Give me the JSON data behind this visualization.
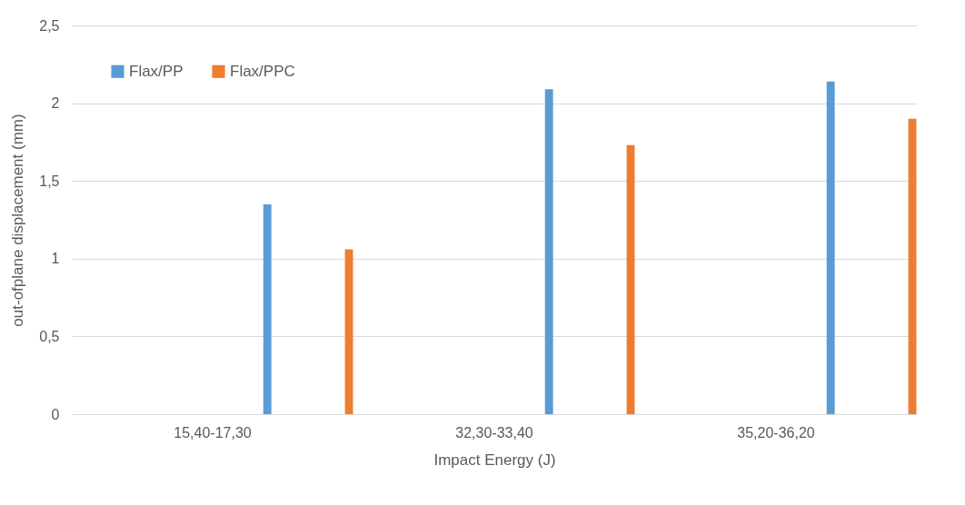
{
  "chart_data": {
    "type": "bar",
    "xlabel": "Impact Energy (J)",
    "ylabel": "out-ofplane displacement (mm)",
    "categories": [
      "15,40-17,30",
      "32,30-33,40",
      "35,20-36,20"
    ],
    "series": [
      {
        "name": "Flax/PP",
        "color": "#5b9bd5",
        "values": [
          1.35,
          2.09,
          2.14
        ]
      },
      {
        "name": "Flax/PPC",
        "color": "#ed7d31",
        "values": [
          1.06,
          1.73,
          1.9
        ]
      }
    ],
    "ylim": [
      0,
      2.5
    ],
    "yticks": [
      0,
      {
        "value": 0.5,
        "label": "0,5"
      },
      1,
      {
        "value": 1.5,
        "label": "1,5"
      },
      2,
      {
        "value": 2.5,
        "label": "2,5"
      }
    ],
    "grid": "y",
    "legend": "top left"
  }
}
